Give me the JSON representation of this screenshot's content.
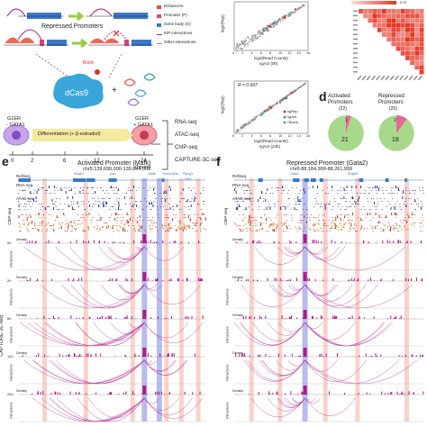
{
  "colors": {
    "enhancer": "#e8503a",
    "promoter": "#d9437a",
    "gene_body": "#3a78c9",
    "interaction": "#b01a8a",
    "highlight_red": "#f2b6a8",
    "highlight_blue": "#9a9ee6",
    "sgRep": "#e4311f",
    "sgAct": "#2a9fa8",
    "others": "#8c8c8c",
    "pie_main": "#a7d98c",
    "pie_slice": "#e8679a",
    "heat": "#e4311f",
    "chip_orange": "#e8a23a"
  },
  "schematic": {
    "title": "Repressed Promoters",
    "biotin": "Biotin",
    "dcas9": "dCas9",
    "plus": "+",
    "legend": {
      "enhancers": "Enhancers",
      "promoter": "Promoter (P)",
      "gene_body": "Gene body (G)",
      "ep": "E/P interactions",
      "other": "Other interactions"
    },
    "left_cell": {
      "l1": "G1ER",
      "l2": "- GATA1"
    },
    "right_cell": {
      "l1": "G1ER",
      "l2": "+ GATA1"
    },
    "differentiation": "Differentiation (+ β-estradiol)",
    "hours": [
      "0",
      "2",
      "6",
      "12",
      "24"
    ],
    "hours_unit": "(hours)",
    "assays": [
      "RNA-seq",
      "ATAC-seq",
      "ChIP-seq",
      "CAPTURE-3C-seq"
    ]
  },
  "scatter_top": {
    "ylabel": "log2(Rep)",
    "xlabel1": "log2(Read Counts)",
    "xlabel2": "sgAct (0h)",
    "ticks": [
      "0",
      "2",
      "4",
      "6",
      "8",
      "10",
      "12",
      "14",
      "16"
    ]
  },
  "scatter_bottom": {
    "r": "R = 0.997",
    "ylabel": "log2(Rep)",
    "xlabel1": "log2(Read Counts)",
    "xlabel2": "sgAct (24h)",
    "ticks": [
      "0",
      "2",
      "4",
      "6",
      "8",
      "10",
      "12",
      "14",
      "16"
    ],
    "legend": [
      "sgRep",
      "sgAct",
      "Others"
    ]
  },
  "heatmap": {
    "scale_label": "0.97"
  },
  "panel_d": {
    "letter": "d",
    "activated": {
      "title1": "Activated",
      "title2": "Promoters",
      "total": "(22)",
      "big": "21",
      "small": "1"
    },
    "repressed": {
      "title1": "Repressed",
      "title2": "Promoters",
      "total": "(20)",
      "big": "18",
      "small": "2"
    }
  },
  "panel_e": {
    "letter": "e",
    "title": "Activated Promoter (Mafk)",
    "coords": "chr5:139,690,000-139,844,000",
    "genes": [
      "Micall2",
      "Iqce",
      "Mafk",
      "Tmem184a",
      "Psmg3",
      "Elfn1"
    ],
    "refseq": "RefSeq",
    "rna": "RNA-seq",
    "atac": "ATAC-seq",
    "chip": "ChIP-seq",
    "capture": "CAPTURE-3C-seq",
    "density": "Density",
    "interactions": "Interactions",
    "timepoints": [
      "0h",
      "2h",
      "6h",
      "12h",
      "24h"
    ]
  },
  "panel_f": {
    "letter": "f",
    "title": "Repressed Promoter (Gata2)",
    "coords": "chr6:88,184,999-88,261,999",
    "genes": [
      "Gata2",
      "Dnajb8"
    ],
    "refseq": "RefSeq",
    "rna": "RNA-seq",
    "atac": "ATAC-seq",
    "chip": "ChIP-seq",
    "density": "Density",
    "interactions": "Interactions"
  }
}
